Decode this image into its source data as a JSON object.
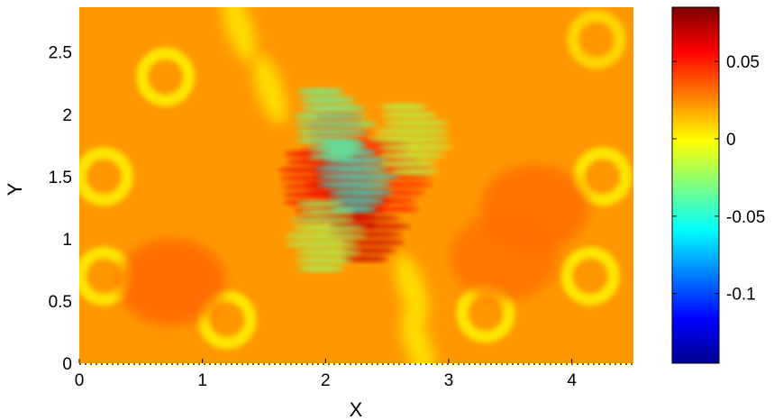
{
  "chart_data": {
    "type": "heatmap",
    "title": "",
    "xlabel": "X",
    "ylabel": "Y",
    "xlim": [
      0,
      4.5
    ],
    "ylim": [
      0,
      2.86
    ],
    "x_ticks": [
      0,
      1,
      2,
      3,
      4
    ],
    "x_tick_labels": [
      "0",
      "1",
      "2",
      "3",
      "4"
    ],
    "y_ticks": [
      0,
      0.5,
      1,
      1.5,
      2,
      2.5
    ],
    "y_tick_labels": [
      "0",
      "0.5",
      "1",
      "1.5",
      "2",
      "2.5"
    ],
    "colormap": "jet",
    "colorbar": {
      "limits": [
        -0.145,
        0.085
      ],
      "ticks": [
        -0.1,
        -0.05,
        0,
        0.05
      ],
      "tick_labels": [
        "-0.1",
        "-0.05",
        "0",
        "0.05"
      ],
      "placement": "right"
    },
    "grid": false,
    "background_value": 0.022,
    "features": [
      {
        "kind": "scattering_region",
        "x": 2.2,
        "y": 1.4,
        "value": 0.065
      },
      {
        "kind": "scattering_region",
        "x": 2.35,
        "y": 1.1,
        "value": 0.07
      },
      {
        "kind": "scattering_region",
        "x": 1.95,
        "y": 1.45,
        "value": 0.06
      },
      {
        "kind": "scattering_region",
        "x": 2.55,
        "y": 1.5,
        "value": 0.05
      },
      {
        "kind": "scattering_region",
        "x": 2.15,
        "y": 1.75,
        "value": 0.05
      },
      {
        "kind": "scattering_region",
        "x": 2.25,
        "y": 1.5,
        "value": -0.055
      },
      {
        "kind": "scattering_region",
        "x": 2.05,
        "y": 1.95,
        "value": -0.04
      },
      {
        "kind": "scattering_region",
        "x": 2.7,
        "y": 1.8,
        "value": -0.02
      },
      {
        "kind": "scattering_region",
        "x": 2.0,
        "y": 1.05,
        "value": -0.025
      },
      {
        "kind": "ring",
        "x": 0.7,
        "y": 2.3,
        "value": 0.0
      },
      {
        "kind": "ring",
        "x": 0.2,
        "y": 1.5,
        "value": 0.0
      },
      {
        "kind": "ring",
        "x": 0.2,
        "y": 0.7,
        "value": 0.0
      },
      {
        "kind": "ring",
        "x": 1.2,
        "y": 0.35,
        "value": 0.0
      },
      {
        "kind": "ring",
        "x": 3.3,
        "y": 0.4,
        "value": 0.0
      },
      {
        "kind": "ring",
        "x": 4.15,
        "y": 0.7,
        "value": 0.0
      },
      {
        "kind": "ring",
        "x": 4.25,
        "y": 1.5,
        "value": 0.0
      },
      {
        "kind": "ring",
        "x": 4.2,
        "y": 2.6,
        "value": 0.005
      },
      {
        "kind": "band",
        "x": 1.3,
        "y": 2.7,
        "value": 0.0
      },
      {
        "kind": "band",
        "x": 1.55,
        "y": 2.2,
        "value": 0.0
      },
      {
        "kind": "band",
        "x": 2.7,
        "y": 0.6,
        "value": 0.0
      },
      {
        "kind": "band",
        "x": 2.75,
        "y": 0.15,
        "value": 0.0
      },
      {
        "kind": "warm_patch",
        "x": 0.75,
        "y": 0.65,
        "value": 0.035
      },
      {
        "kind": "warm_patch",
        "x": 3.7,
        "y": 1.25,
        "value": 0.033
      },
      {
        "kind": "warm_patch",
        "x": 3.45,
        "y": 0.85,
        "value": 0.032
      }
    ]
  }
}
